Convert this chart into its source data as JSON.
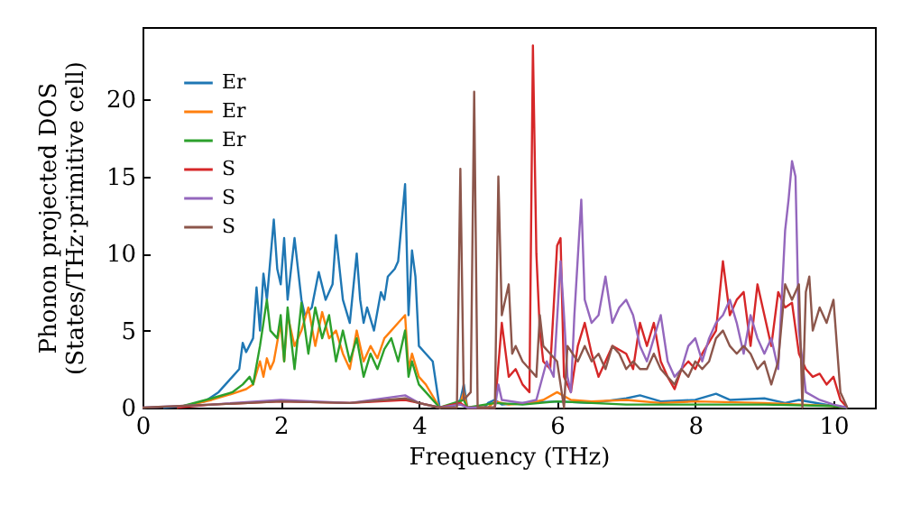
{
  "chart_data": {
    "type": "line",
    "xlabel": "Frequency (THz)",
    "ylabel": "Phonon projected DOS\n(States/THz·primitive cell)",
    "xlim": [
      0,
      10.6
    ],
    "ylim": [
      0,
      24.7
    ],
    "xticks": [
      0,
      2,
      4,
      6,
      8,
      10
    ],
    "yticks": [
      0,
      5,
      10,
      15,
      20
    ],
    "legend": "top left",
    "grid": false,
    "series": [
      {
        "name": "Er",
        "color": "#1f77b4",
        "x": [
          0.3,
          0.6,
          0.9,
          1.1,
          1.3,
          1.4,
          1.45,
          1.5,
          1.6,
          1.65,
          1.7,
          1.75,
          1.8,
          1.9,
          1.95,
          2.0,
          2.05,
          2.1,
          2.2,
          2.3,
          2.35,
          2.45,
          2.55,
          2.65,
          2.75,
          2.8,
          2.9,
          3.0,
          3.1,
          3.15,
          3.2,
          3.25,
          3.35,
          3.45,
          3.5,
          3.55,
          3.65,
          3.7,
          3.8,
          3.85,
          3.9,
          3.95,
          4.0,
          4.1,
          4.2,
          4.3,
          4.5,
          4.6,
          4.65,
          4.7,
          4.95,
          5.0,
          5.1,
          5.2,
          5.5,
          6.0,
          6.5,
          7.0,
          7.2,
          7.5,
          8.0,
          8.3,
          8.5,
          9.0,
          9.3,
          9.5,
          10.0,
          10.2
        ],
        "values": [
          0,
          0.1,
          0.4,
          1,
          2,
          2.5,
          4.2,
          3.6,
          4.5,
          7.8,
          5,
          8.7,
          7,
          12.2,
          9,
          8,
          11,
          7,
          11,
          7,
          6,
          6.5,
          8.8,
          7,
          8,
          11.2,
          7,
          5.5,
          10,
          7,
          5.5,
          6.5,
          5,
          7.5,
          7,
          8.5,
          9,
          9.5,
          14.5,
          6,
          10.2,
          8.5,
          4,
          3.5,
          3,
          0,
          0.1,
          0.5,
          1.5,
          0,
          0,
          0.3,
          0.5,
          0.2,
          0.3,
          0.4,
          0.3,
          0.6,
          0.8,
          0.4,
          0.5,
          0.9,
          0.5,
          0.6,
          0.3,
          0.5,
          0.1,
          0
        ]
      },
      {
        "name": "Er",
        "color": "#ff7f0e",
        "x": [
          0.5,
          1,
          1.3,
          1.5,
          1.6,
          1.7,
          1.75,
          1.8,
          1.85,
          1.9,
          2,
          2.05,
          2.1,
          2.2,
          2.3,
          2.4,
          2.5,
          2.6,
          2.7,
          2.8,
          2.9,
          3,
          3.1,
          3.2,
          3.3,
          3.4,
          3.5,
          3.6,
          3.7,
          3.8,
          3.85,
          3.9,
          4,
          4.1,
          4.3,
          4.6,
          4.65,
          4.7,
          5.0,
          5.1,
          5.3,
          5.6,
          5.8,
          6,
          6.2,
          6.5,
          7,
          7.5,
          8,
          9,
          10,
          10.2
        ],
        "values": [
          0,
          0.5,
          0.9,
          1.2,
          1.5,
          3,
          2,
          3.2,
          2.5,
          3,
          5.5,
          3,
          6,
          4,
          5,
          6.5,
          4,
          6.2,
          4.5,
          5,
          3.5,
          2.5,
          5,
          3,
          4,
          3.2,
          4.5,
          5,
          5.5,
          6,
          2.5,
          3.5,
          2,
          1.5,
          0,
          0.3,
          1,
          0,
          0,
          0.4,
          0.2,
          0.3,
          0.5,
          1,
          0.5,
          0.4,
          0.5,
          0.3,
          0.4,
          0.3,
          0.1,
          0
        ]
      },
      {
        "name": "Er",
        "color": "#2ca02c",
        "x": [
          0.5,
          1,
          1.3,
          1.45,
          1.55,
          1.6,
          1.7,
          1.75,
          1.8,
          1.85,
          1.95,
          2,
          2.05,
          2.1,
          2.2,
          2.3,
          2.4,
          2.5,
          2.6,
          2.7,
          2.8,
          2.9,
          3,
          3.1,
          3.2,
          3.3,
          3.4,
          3.5,
          3.6,
          3.7,
          3.8,
          3.85,
          3.9,
          4.0,
          4.1,
          4.3,
          4.65,
          4.7,
          5.1,
          5.5,
          6,
          6.5,
          7,
          8,
          9,
          10,
          10.2
        ],
        "values": [
          0,
          0.6,
          1.0,
          1.5,
          2,
          1.5,
          4,
          5.5,
          7,
          5,
          4.5,
          6,
          3,
          6.5,
          2.5,
          6.8,
          3.5,
          6.5,
          4.5,
          6,
          3,
          5,
          3,
          4.5,
          2,
          3.5,
          2.5,
          3.8,
          4.5,
          3,
          5,
          2,
          3,
          1.5,
          1,
          0,
          0.5,
          0,
          0.3,
          0.2,
          0.4,
          0.3,
          0.2,
          0.2,
          0.2,
          0.1,
          0
        ]
      },
      {
        "name": "S",
        "color": "#d62728",
        "x": [
          0.5,
          1,
          2,
          3,
          3.8,
          4,
          4.3,
          4.6,
          4.7,
          5.1,
          5.2,
          5.3,
          5.4,
          5.5,
          5.6,
          5.65,
          5.7,
          5.75,
          5.8,
          5.9,
          6.0,
          6.05,
          6.1,
          6.2,
          6.3,
          6.4,
          6.5,
          6.6,
          6.8,
          7,
          7.1,
          7.2,
          7.3,
          7.4,
          7.5,
          7.6,
          7.7,
          7.8,
          7.9,
          8.0,
          8.1,
          8.3,
          8.4,
          8.5,
          8.6,
          8.7,
          8.8,
          8.9,
          9.0,
          9.1,
          9.2,
          9.3,
          9.4,
          9.5,
          9.6,
          9.7,
          9.8,
          9.9,
          10,
          10.1,
          10.2
        ],
        "values": [
          0,
          0.2,
          0.4,
          0.3,
          0.5,
          0.3,
          0,
          0.3,
          0,
          0,
          5.5,
          2,
          2.5,
          1.5,
          1,
          23.5,
          10,
          5,
          3,
          2.5,
          10.5,
          11,
          2,
          1,
          4,
          5.5,
          3.5,
          2,
          4,
          3.5,
          2.5,
          5.5,
          4,
          5.5,
          3,
          2,
          1.2,
          2.5,
          3,
          2.5,
          3.5,
          5,
          9.5,
          6,
          7,
          7.5,
          4,
          8,
          6,
          4,
          7.5,
          6.5,
          6.8,
          3.5,
          2.5,
          2,
          2.2,
          1.5,
          2,
          0.5,
          0
        ]
      },
      {
        "name": "S",
        "color": "#9467bd",
        "x": [
          0,
          1,
          2,
          3,
          3.8,
          4,
          4.3,
          4.6,
          4.7,
          5.1,
          5.15,
          5.2,
          5.5,
          5.7,
          5.85,
          5.95,
          6.05,
          6.1,
          6.15,
          6.2,
          6.25,
          6.35,
          6.4,
          6.5,
          6.6,
          6.7,
          6.8,
          6.9,
          7.0,
          7.1,
          7.2,
          7.3,
          7.4,
          7.5,
          7.6,
          7.7,
          7.8,
          7.9,
          8.0,
          8.1,
          8.2,
          8.3,
          8.4,
          8.5,
          8.6,
          8.7,
          8.8,
          8.9,
          9.0,
          9.1,
          9.2,
          9.3,
          9.35,
          9.4,
          9.45,
          9.5,
          9.55,
          9.6,
          9.8,
          10,
          10.2
        ],
        "values": [
          0,
          0.2,
          0.5,
          0.3,
          0.8,
          0.3,
          0,
          0.2,
          0,
          0,
          1.5,
          0.5,
          0.3,
          0.5,
          3,
          2,
          9.5,
          6,
          2,
          1,
          6,
          13.5,
          7,
          5.5,
          6,
          8.5,
          5.5,
          6.5,
          7,
          6,
          4,
          3,
          4.5,
          6,
          3,
          2,
          2.5,
          4,
          4.5,
          3,
          4.5,
          5.5,
          6,
          7,
          5.5,
          3.5,
          6,
          4.5,
          3.5,
          4.5,
          2.5,
          11.5,
          13.5,
          16,
          15,
          5,
          3,
          1,
          0.5,
          0.2,
          0
        ]
      },
      {
        "name": "S",
        "color": "#8c564b",
        "x": [
          0,
          1,
          2,
          3,
          3.8,
          4.0,
          4.3,
          4.55,
          4.6,
          4.65,
          4.75,
          4.8,
          4.85,
          5.1,
          5.15,
          5.2,
          5.3,
          5.35,
          5.4,
          5.5,
          5.6,
          5.7,
          5.75,
          5.8,
          5.9,
          6.0,
          6.05,
          6.1,
          6.15,
          6.3,
          6.4,
          6.5,
          6.6,
          6.7,
          6.8,
          6.9,
          7,
          7.1,
          7.2,
          7.3,
          7.4,
          7.5,
          7.6,
          7.7,
          7.8,
          7.9,
          8.0,
          8.1,
          8.2,
          8.3,
          8.4,
          8.5,
          8.6,
          8.7,
          8.8,
          8.9,
          9.0,
          9.1,
          9.2,
          9.3,
          9.4,
          9.5,
          9.55,
          9.6,
          9.65,
          9.7,
          9.8,
          9.9,
          10,
          10.05,
          10.1,
          10.2
        ],
        "values": [
          0,
          0.2,
          0.4,
          0.3,
          0.6,
          0.3,
          0,
          0,
          15.5,
          0.5,
          1,
          20.5,
          0,
          0,
          15,
          6,
          8,
          3.5,
          4,
          3,
          2.5,
          2,
          6,
          4,
          3.5,
          3,
          1.5,
          0,
          4,
          3,
          4,
          3,
          3.5,
          2.5,
          4,
          3.5,
          2.5,
          3,
          2.5,
          2.5,
          3.5,
          2.5,
          2,
          1.5,
          2.5,
          2,
          3,
          2.5,
          3,
          4.5,
          5,
          4,
          3.5,
          4,
          3.5,
          2.5,
          3,
          1.5,
          3,
          8,
          7,
          8,
          0,
          7.5,
          8.5,
          5,
          6.5,
          5.5,
          7,
          4,
          1,
          0
        ]
      }
    ]
  }
}
